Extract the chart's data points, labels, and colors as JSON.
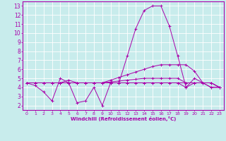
{
  "xlabel": "Windchill (Refroidissement éolien,°C)",
  "bg_color": "#c8ecec",
  "line_color": "#aa00aa",
  "grid_color": "#ffffff",
  "xlim": [
    -0.5,
    23.5
  ],
  "ylim": [
    1.5,
    13.5
  ],
  "xticks": [
    0,
    1,
    2,
    3,
    4,
    5,
    6,
    7,
    8,
    9,
    10,
    11,
    12,
    13,
    14,
    15,
    16,
    17,
    18,
    19,
    20,
    21,
    22,
    23
  ],
  "yticks": [
    2,
    3,
    4,
    5,
    6,
    7,
    8,
    9,
    10,
    11,
    12,
    13
  ],
  "lines": [
    {
      "x": [
        0,
        1,
        2,
        3,
        4,
        5,
        6,
        7,
        8,
        9,
        10,
        11,
        12,
        13,
        14,
        15,
        16,
        17,
        18,
        19,
        20,
        21,
        22,
        23
      ],
      "y": [
        4.5,
        4.2,
        3.5,
        2.5,
        5.0,
        4.5,
        2.3,
        2.5,
        4.0,
        2.0,
        4.5,
        4.5,
        7.5,
        10.5,
        12.5,
        13.0,
        13.0,
        10.8,
        7.5,
        4.0,
        5.0,
        4.5,
        4.0,
        4.0
      ]
    },
    {
      "x": [
        0,
        1,
        2,
        3,
        4,
        5,
        6,
        7,
        8,
        9,
        10,
        11,
        12,
        13,
        14,
        15,
        16,
        17,
        18,
        19,
        20,
        21,
        22,
        23
      ],
      "y": [
        4.5,
        4.5,
        4.5,
        4.5,
        4.5,
        4.8,
        4.5,
        4.5,
        4.5,
        4.5,
        4.8,
        5.1,
        5.4,
        5.7,
        6.0,
        6.3,
        6.5,
        6.5,
        6.5,
        6.5,
        5.8,
        4.5,
        4.0,
        4.0
      ]
    },
    {
      "x": [
        0,
        1,
        2,
        3,
        4,
        5,
        6,
        7,
        8,
        9,
        10,
        11,
        12,
        13,
        14,
        15,
        16,
        17,
        18,
        19,
        20,
        21,
        22,
        23
      ],
      "y": [
        4.5,
        4.5,
        4.5,
        4.5,
        4.5,
        4.5,
        4.5,
        4.5,
        4.5,
        4.5,
        4.6,
        4.7,
        4.8,
        4.9,
        5.0,
        5.0,
        5.0,
        5.0,
        5.0,
        4.5,
        4.5,
        4.5,
        4.5,
        4.0
      ]
    },
    {
      "x": [
        0,
        1,
        2,
        3,
        4,
        5,
        6,
        7,
        8,
        9,
        10,
        11,
        12,
        13,
        14,
        15,
        16,
        17,
        18,
        19,
        20,
        21,
        22,
        23
      ],
      "y": [
        4.5,
        4.5,
        4.5,
        4.5,
        4.5,
        4.5,
        4.5,
        4.5,
        4.5,
        4.5,
        4.5,
        4.5,
        4.5,
        4.5,
        4.5,
        4.5,
        4.5,
        4.5,
        4.5,
        4.5,
        4.5,
        4.5,
        4.5,
        4.0
      ]
    },
    {
      "x": [
        0,
        1,
        2,
        3,
        4,
        5,
        6,
        7,
        8,
        9,
        10,
        11,
        12,
        13,
        14,
        15,
        16,
        17,
        18,
        19,
        20,
        21,
        22,
        23
      ],
      "y": [
        4.5,
        4.5,
        4.5,
        4.5,
        4.5,
        4.5,
        4.5,
        4.5,
        4.5,
        4.5,
        4.5,
        4.5,
        4.5,
        4.5,
        4.5,
        4.5,
        4.5,
        4.5,
        4.5,
        4.0,
        4.5,
        4.5,
        4.5,
        4.0
      ]
    }
  ]
}
